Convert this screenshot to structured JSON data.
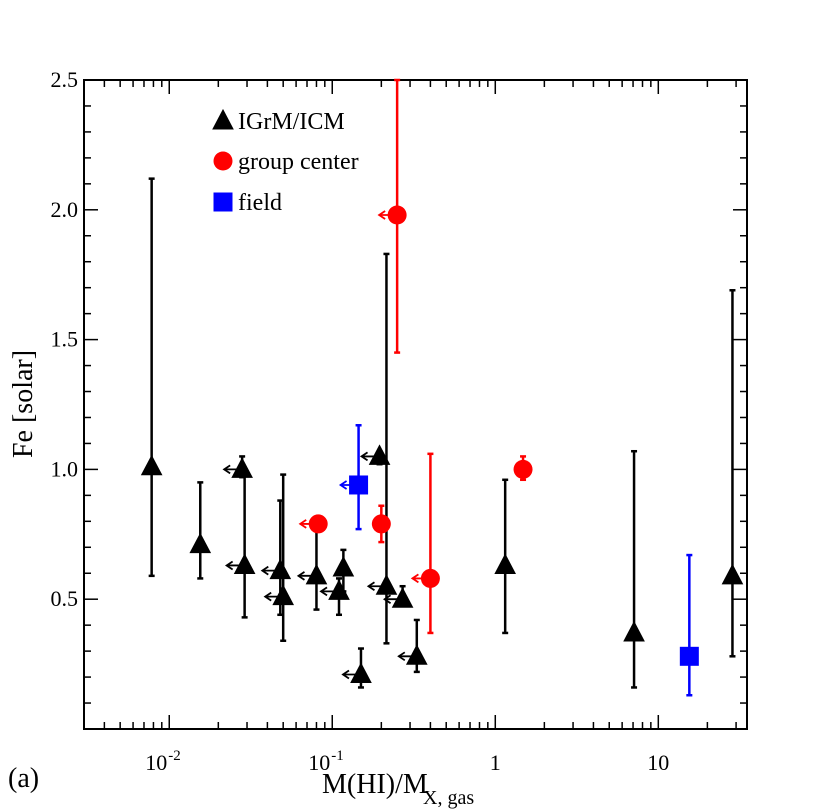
{
  "chart_data": {
    "type": "scatter",
    "panel_label": "(a)",
    "xlabel": "M(HI)/M",
    "xlabel_sub": "X, gas",
    "ylabel": "Fe [solar]",
    "xscale": "log",
    "xlim": [
      0.003,
      35
    ],
    "ylim": [
      0,
      2.5
    ],
    "x_tick_labels": [
      {
        "base": "10",
        "exp": "-2",
        "value": 0.01
      },
      {
        "base": "10",
        "exp": "-1",
        "value": 0.1
      },
      {
        "base": "1",
        "exp": "",
        "value": 1
      },
      {
        "base": "10",
        "exp": "",
        "value": 10
      }
    ],
    "y_ticks": [
      0.5,
      1.0,
      1.5,
      2.0,
      2.5
    ],
    "y_tick_labels": [
      "0.5",
      "1.0",
      "1.5",
      "2.0",
      "2.5"
    ],
    "legend_position": "top-left",
    "series": [
      {
        "name": "IGrM/ICM",
        "marker": "triangle",
        "color": "#000000",
        "points": [
          {
            "x": 0.0078,
            "y": 1.01,
            "ylo": 0.59,
            "yhi": 2.12,
            "upper_limit": false
          },
          {
            "x": 0.0155,
            "y": 0.71,
            "ylo": 0.58,
            "yhi": 0.95,
            "upper_limit": false
          },
          {
            "x": 0.028,
            "y": 1.0,
            "ylo": 0.97,
            "yhi": 1.05,
            "upper_limit": true
          },
          {
            "x": 0.029,
            "y": 0.63,
            "ylo": 0.43,
            "yhi": 1.0,
            "upper_limit": true
          },
          {
            "x": 0.048,
            "y": 0.61,
            "ylo": 0.44,
            "yhi": 0.88,
            "upper_limit": true
          },
          {
            "x": 0.05,
            "y": 0.51,
            "ylo": 0.34,
            "yhi": 0.98,
            "upper_limit": true
          },
          {
            "x": 0.08,
            "y": 0.59,
            "ylo": 0.46,
            "yhi": 0.79,
            "upper_limit": true
          },
          {
            "x": 0.11,
            "y": 0.53,
            "ylo": 0.44,
            "yhi": 0.58,
            "upper_limit": true
          },
          {
            "x": 0.117,
            "y": 0.62,
            "ylo": 0.53,
            "yhi": 0.69,
            "upper_limit": false
          },
          {
            "x": 0.15,
            "y": 0.21,
            "ylo": 0.16,
            "yhi": 0.31,
            "upper_limit": true
          },
          {
            "x": 0.195,
            "y": 1.05,
            "ylo": 1.02,
            "yhi": 1.07,
            "upper_limit": true
          },
          {
            "x": 0.215,
            "y": 0.55,
            "ylo": 0.33,
            "yhi": 1.83,
            "upper_limit": true
          },
          {
            "x": 0.27,
            "y": 0.5,
            "ylo": 0.48,
            "yhi": 0.55,
            "upper_limit": true
          },
          {
            "x": 0.33,
            "y": 0.28,
            "ylo": 0.22,
            "yhi": 0.42,
            "upper_limit": true
          },
          {
            "x": 1.15,
            "y": 0.63,
            "ylo": 0.37,
            "yhi": 0.96,
            "upper_limit": false
          },
          {
            "x": 7.1,
            "y": 0.37,
            "ylo": 0.16,
            "yhi": 1.07,
            "upper_limit": false
          },
          {
            "x": 28.5,
            "y": 0.59,
            "ylo": 0.28,
            "yhi": 1.69,
            "upper_limit": false
          }
        ]
      },
      {
        "name": "group center",
        "marker": "circle",
        "color": "#ff0000",
        "points": [
          {
            "x": 0.082,
            "y": 0.79,
            "ylo": 0.79,
            "yhi": 0.79,
            "upper_limit": true
          },
          {
            "x": 0.2,
            "y": 0.79,
            "ylo": 0.72,
            "yhi": 0.86,
            "upper_limit": false
          },
          {
            "x": 0.25,
            "y": 1.98,
            "ylo": 1.45,
            "yhi": 2.5,
            "upper_limit": true
          },
          {
            "x": 0.4,
            "y": 0.58,
            "ylo": 0.37,
            "yhi": 1.06,
            "upper_limit": true
          },
          {
            "x": 1.48,
            "y": 1.0,
            "ylo": 0.96,
            "yhi": 1.05,
            "upper_limit": false
          }
        ]
      },
      {
        "name": "field",
        "marker": "square",
        "color": "#0000ff",
        "points": [
          {
            "x": 0.145,
            "y": 0.94,
            "ylo": 0.77,
            "yhi": 1.17,
            "upper_limit": true
          },
          {
            "x": 15.5,
            "y": 0.28,
            "ylo": 0.13,
            "yhi": 0.67,
            "upper_limit": false
          }
        ]
      }
    ]
  }
}
